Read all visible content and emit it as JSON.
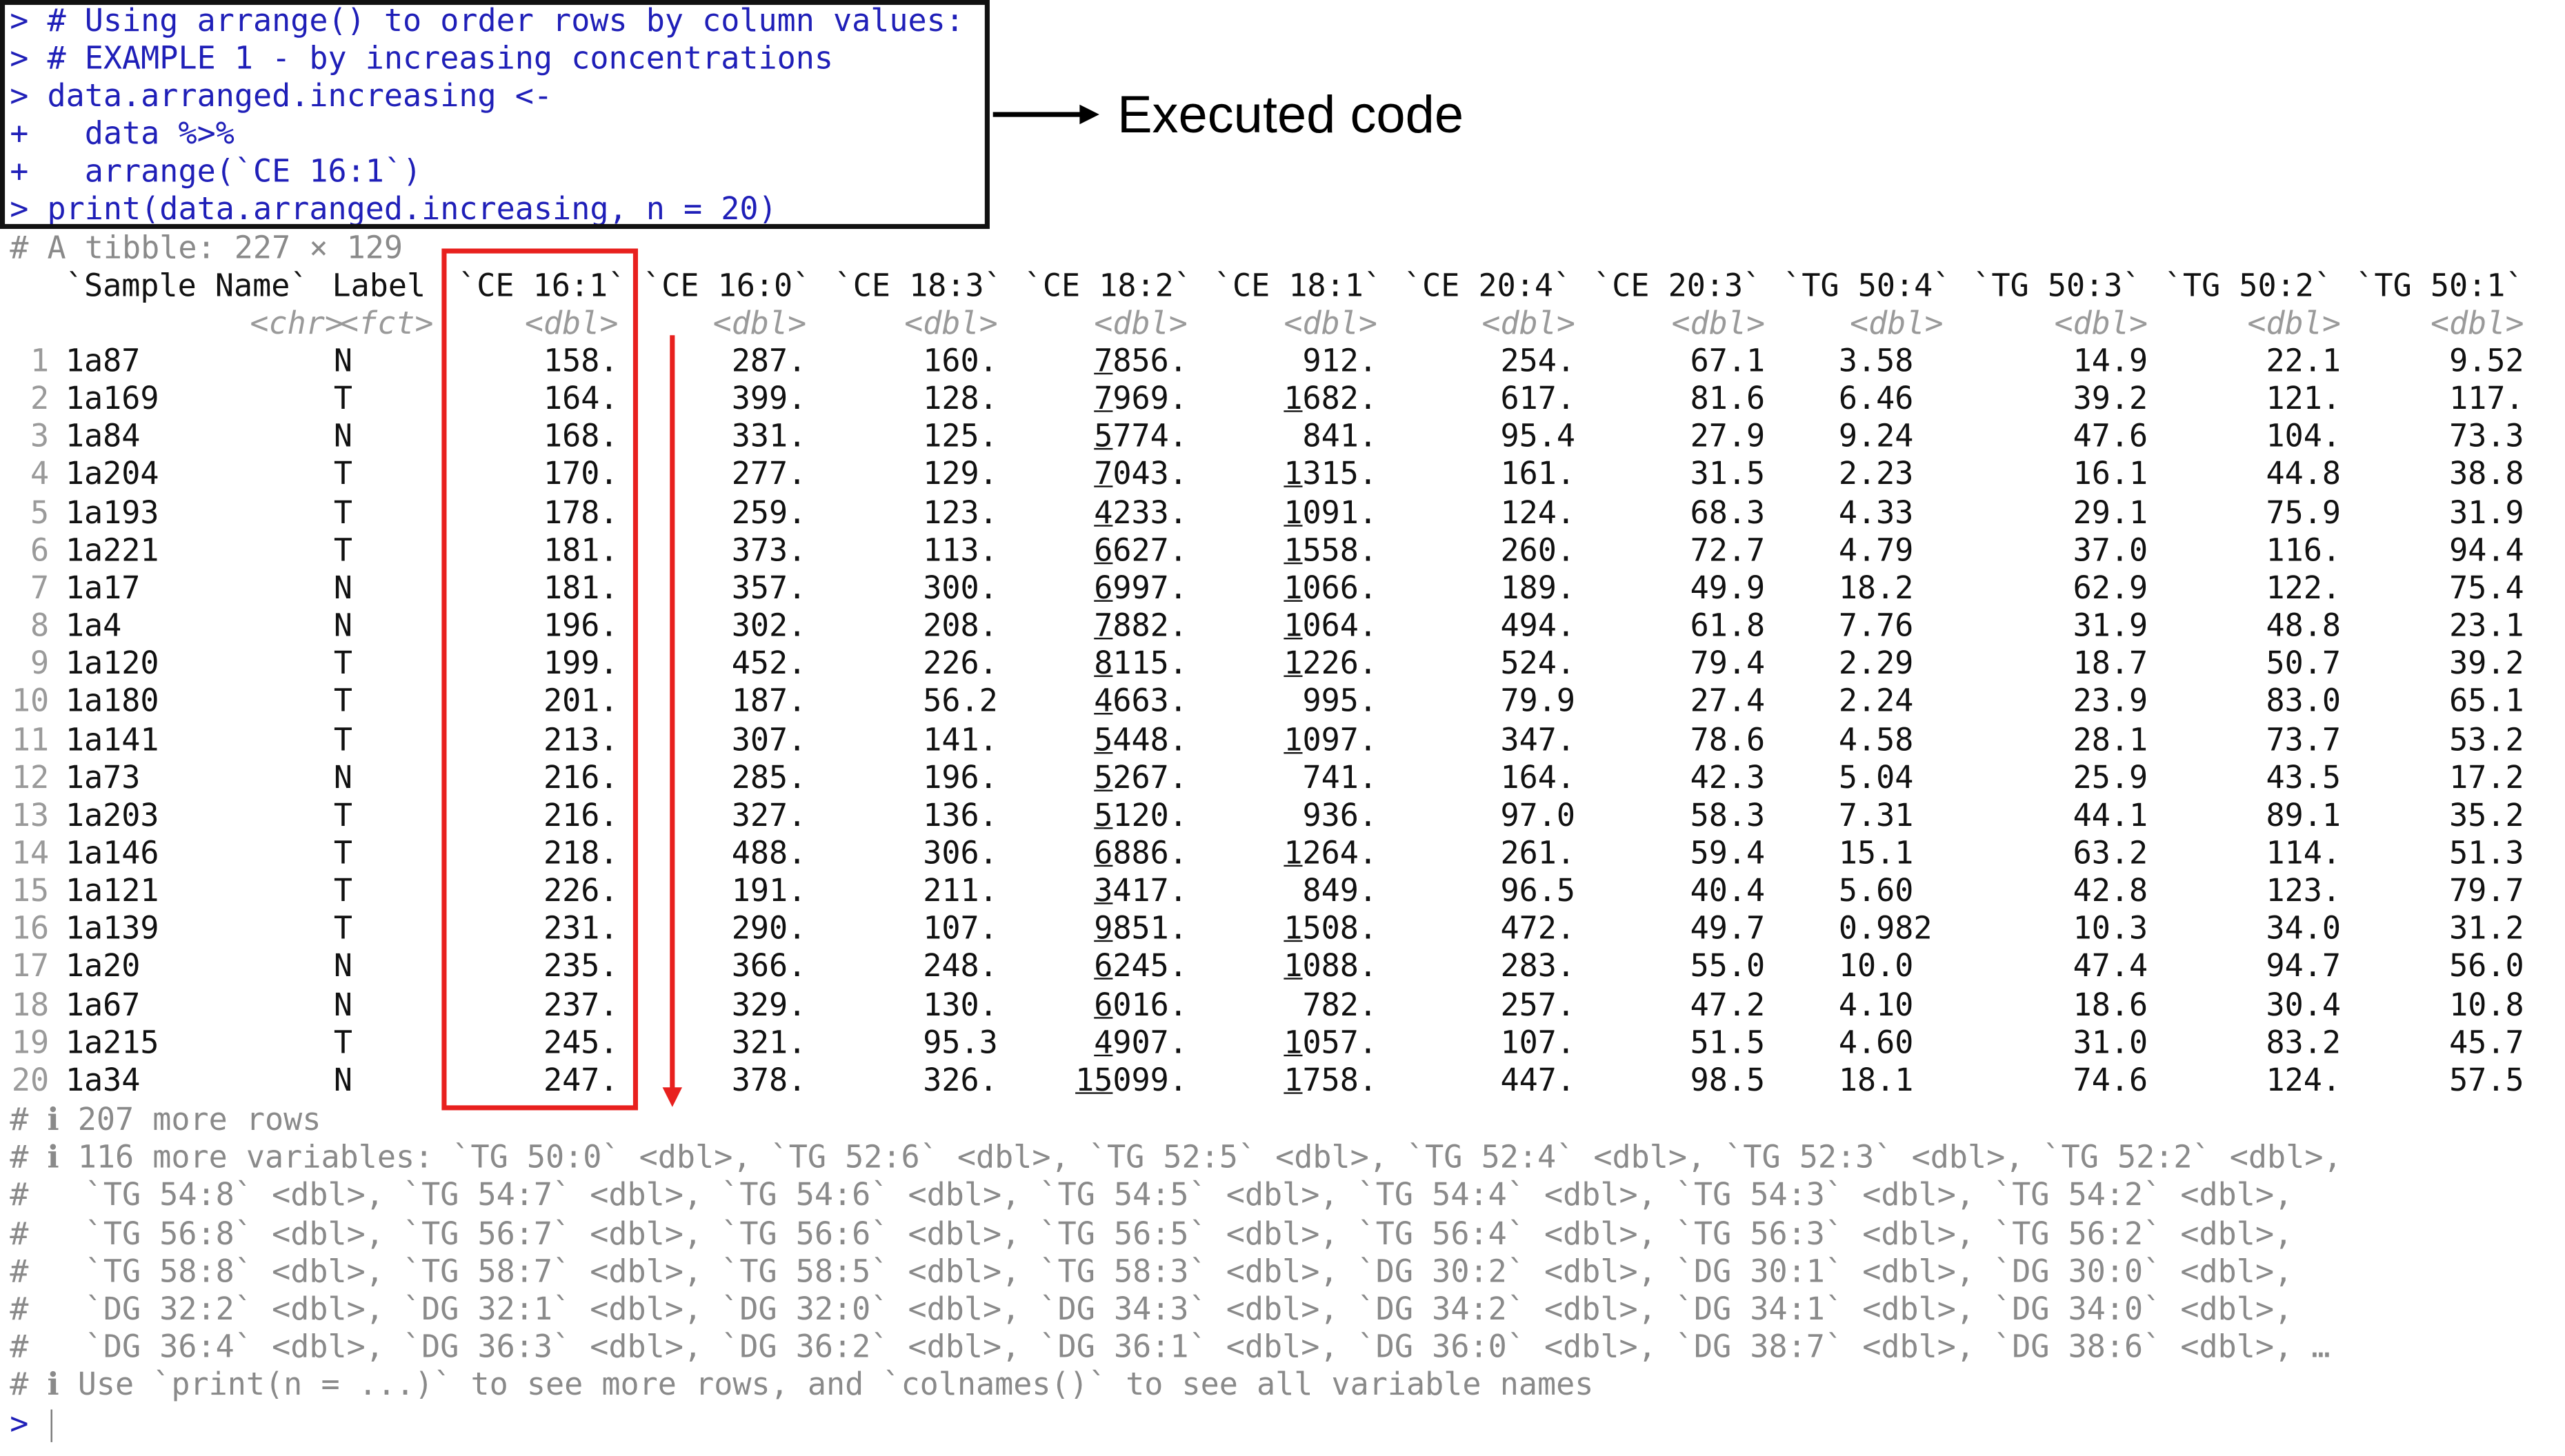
{
  "console": {
    "code_lines": [
      {
        "prefix": ">",
        "text": " # Using arrange() to order rows by column values:"
      },
      {
        "prefix": ">",
        "text": " # EXAMPLE 1 - by increasing concentrations"
      },
      {
        "prefix": ">",
        "text": " data.arranged.increasing <-"
      },
      {
        "prefix": "+",
        "text": "   data %>%"
      },
      {
        "prefix": "+",
        "text": "   arrange(`CE 16:1`)"
      },
      {
        "prefix": ">",
        "text": " print(data.arranged.increasing, n = 20)"
      }
    ],
    "annotation_label": "Executed code",
    "tibble_header": "# A tibble: 227 × 129",
    "prompt": ">",
    "footer": [
      "# ℹ 207 more rows",
      "# ℹ 116 more variables: `TG 50:0` <dbl>, `TG 52:6` <dbl>, `TG 52:5` <dbl>, `TG 52:4` <dbl>, `TG 52:3` <dbl>, `TG 52:2` <dbl>,",
      "#   `TG 54:8` <dbl>, `TG 54:7` <dbl>, `TG 54:6` <dbl>, `TG 54:5` <dbl>, `TG 54:4` <dbl>, `TG 54:3` <dbl>, `TG 54:2` <dbl>,",
      "#   `TG 56:8` <dbl>, `TG 56:7` <dbl>, `TG 56:6` <dbl>, `TG 56:5` <dbl>, `TG 56:4` <dbl>, `TG 56:3` <dbl>, `TG 56:2` <dbl>,",
      "#   `TG 58:8` <dbl>, `TG 58:7` <dbl>, `TG 58:5` <dbl>, `TG 58:3` <dbl>, `DG 30:2` <dbl>, `DG 30:1` <dbl>, `DG 30:0` <dbl>,",
      "#   `DG 32:2` <dbl>, `DG 32:1` <dbl>, `DG 32:0` <dbl>, `DG 34:3` <dbl>, `DG 34:2` <dbl>, `DG 34:1` <dbl>, `DG 34:0` <dbl>,",
      "#   `DG 36:4` <dbl>, `DG 36:3` <dbl>, `DG 36:2` <dbl>, `DG 36:1` <dbl>, `DG 36:0` <dbl>, `DG 38:7` <dbl>, `DG 38:6` <dbl>, …",
      "# ℹ Use `print(n = ...)` to see more rows, and `colnames()` to see all variable names"
    ]
  },
  "tibble": {
    "columns": [
      "`Sample Name`",
      "Label",
      "`CE 16:1`",
      "`CE 16:0`",
      "`CE 18:3`",
      "`CE 18:2`",
      "`CE 18:1`",
      "`CE 20:4`",
      "`CE 20:3`",
      "`TG 50:4`",
      "`TG 50:3`",
      "`TG 50:2`",
      "`TG 50:1`"
    ],
    "types": [
      "<chr>",
      "<fct>",
      "<dbl>",
      "<dbl>",
      "<dbl>",
      "<dbl>",
      "<dbl>",
      "<dbl>",
      "<dbl>",
      "<dbl>",
      "<dbl>",
      "<dbl>",
      "<dbl>"
    ],
    "rows": [
      {
        "n": "1",
        "cells": [
          "1a87",
          "N",
          "158.",
          "287.",
          "160.",
          "7856.",
          "912.",
          "254.",
          "67.1",
          "3.58",
          "14.9",
          "22.1",
          "9.52"
        ]
      },
      {
        "n": "2",
        "cells": [
          "1a169",
          "T",
          "164.",
          "399.",
          "128.",
          "7969.",
          "1682.",
          "617.",
          "81.6",
          "6.46",
          "39.2",
          "121.",
          "117."
        ]
      },
      {
        "n": "3",
        "cells": [
          "1a84",
          "N",
          "168.",
          "331.",
          "125.",
          "5774.",
          "841.",
          "95.4",
          "27.9",
          "9.24",
          "47.6",
          "104.",
          "73.3"
        ]
      },
      {
        "n": "4",
        "cells": [
          "1a204",
          "T",
          "170.",
          "277.",
          "129.",
          "7043.",
          "1315.",
          "161.",
          "31.5",
          "2.23",
          "16.1",
          "44.8",
          "38.8"
        ]
      },
      {
        "n": "5",
        "cells": [
          "1a193",
          "T",
          "178.",
          "259.",
          "123.",
          "4233.",
          "1091.",
          "124.",
          "68.3",
          "4.33",
          "29.1",
          "75.9",
          "31.9"
        ]
      },
      {
        "n": "6",
        "cells": [
          "1a221",
          "T",
          "181.",
          "373.",
          "113.",
          "6627.",
          "1558.",
          "260.",
          "72.7",
          "4.79",
          "37.0",
          "116.",
          "94.4"
        ]
      },
      {
        "n": "7",
        "cells": [
          "1a17",
          "N",
          "181.",
          "357.",
          "300.",
          "6997.",
          "1066.",
          "189.",
          "49.9",
          "18.2",
          "62.9",
          "122.",
          "75.4"
        ]
      },
      {
        "n": "8",
        "cells": [
          "1a4",
          "N",
          "196.",
          "302.",
          "208.",
          "7882.",
          "1064.",
          "494.",
          "61.8",
          "7.76",
          "31.9",
          "48.8",
          "23.1"
        ]
      },
      {
        "n": "9",
        "cells": [
          "1a120",
          "T",
          "199.",
          "452.",
          "226.",
          "8115.",
          "1226.",
          "524.",
          "79.4",
          "2.29",
          "18.7",
          "50.7",
          "39.2"
        ]
      },
      {
        "n": "10",
        "cells": [
          "1a180",
          "T",
          "201.",
          "187.",
          "56.2",
          "4663.",
          "995.",
          "79.9",
          "27.4",
          "2.24",
          "23.9",
          "83.0",
          "65.1"
        ]
      },
      {
        "n": "11",
        "cells": [
          "1a141",
          "T",
          "213.",
          "307.",
          "141.",
          "5448.",
          "1097.",
          "347.",
          "78.6",
          "4.58",
          "28.1",
          "73.7",
          "53.2"
        ]
      },
      {
        "n": "12",
        "cells": [
          "1a73",
          "N",
          "216.",
          "285.",
          "196.",
          "5267.",
          "741.",
          "164.",
          "42.3",
          "5.04",
          "25.9",
          "43.5",
          "17.2"
        ]
      },
      {
        "n": "13",
        "cells": [
          "1a203",
          "T",
          "216.",
          "327.",
          "136.",
          "5120.",
          "936.",
          "97.0",
          "58.3",
          "7.31",
          "44.1",
          "89.1",
          "35.2"
        ]
      },
      {
        "n": "14",
        "cells": [
          "1a146",
          "T",
          "218.",
          "488.",
          "306.",
          "6886.",
          "1264.",
          "261.",
          "59.4",
          "15.1",
          "63.2",
          "114.",
          "51.3"
        ]
      },
      {
        "n": "15",
        "cells": [
          "1a121",
          "T",
          "226.",
          "191.",
          "211.",
          "3417.",
          "849.",
          "96.5",
          "40.4",
          "5.60",
          "42.8",
          "123.",
          "79.7"
        ]
      },
      {
        "n": "16",
        "cells": [
          "1a139",
          "T",
          "231.",
          "290.",
          "107.",
          "9851.",
          "1508.",
          "472.",
          "49.7",
          "0.982",
          "10.3",
          "34.0",
          "31.2"
        ]
      },
      {
        "n": "17",
        "cells": [
          "1a20",
          "N",
          "235.",
          "366.",
          "248.",
          "6245.",
          "1088.",
          "283.",
          "55.0",
          "10.0",
          "47.4",
          "94.7",
          "56.0"
        ]
      },
      {
        "n": "18",
        "cells": [
          "1a67",
          "N",
          "237.",
          "329.",
          "130.",
          "6016.",
          "782.",
          "257.",
          "47.2",
          "4.10",
          "18.6",
          "30.4",
          "10.8"
        ]
      },
      {
        "n": "19",
        "cells": [
          "1a215",
          "T",
          "245.",
          "321.",
          "95.3",
          "4907.",
          "1057.",
          "107.",
          "51.5",
          "4.60",
          "31.0",
          "83.2",
          "45.7"
        ]
      },
      {
        "n": "20",
        "cells": [
          "1a34",
          "N",
          "247.",
          "378.",
          "326.",
          "15099.",
          "1758.",
          "447.",
          "98.5",
          "18.1",
          "74.6",
          "124.",
          "57.5"
        ]
      }
    ]
  },
  "colors": {
    "code_text": "#1f1fb8",
    "comment_text": "#8a8a8a",
    "highlight_box": "#e8201e",
    "code_box_border": "#111111"
  }
}
